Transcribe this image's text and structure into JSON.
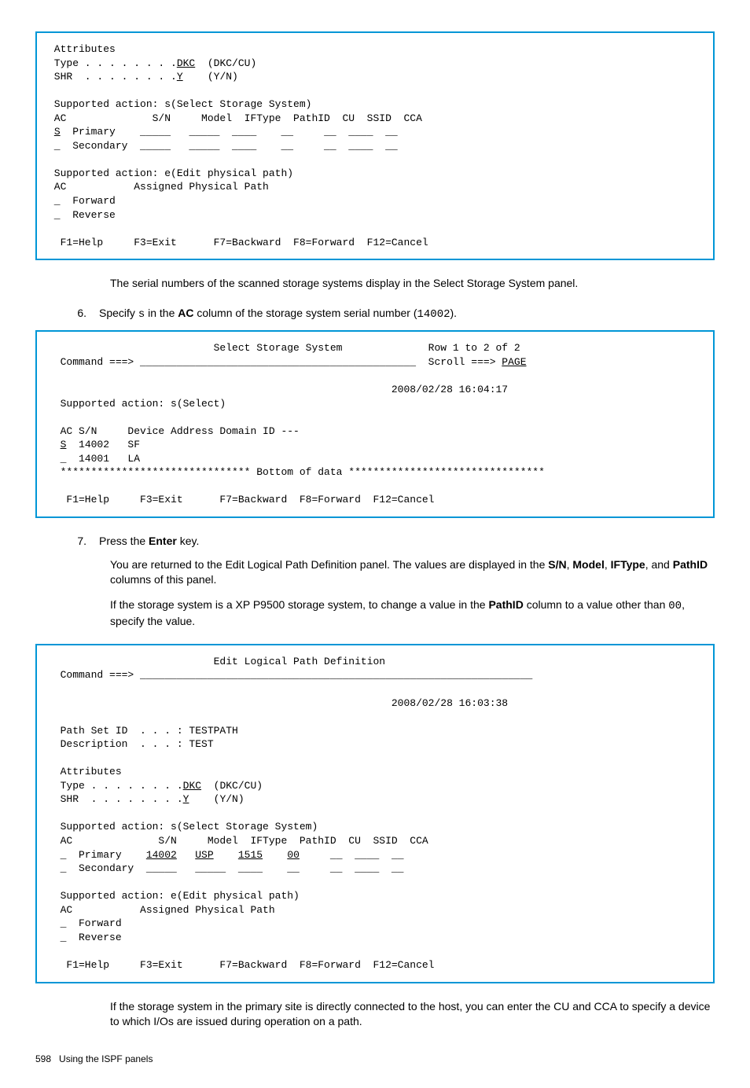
{
  "terminal1": {
    "line1": " Attributes",
    "line2a": " Type . . . . . . . .",
    "line2b": "DKC",
    "line2c": "  (DKC/CU)",
    "line3a": " SHR  . . . . . . . .",
    "line3b": "Y",
    "line3c": "    (Y/N)",
    "line4": " ",
    "line5": " Supported action: s(Select Storage System)",
    "line6": " AC              S/N     Model  IFType  PathID  CU  SSID  CCA",
    "line7a": " ",
    "line7b": "S",
    "line7c": "  Primary    _____   _____  ____    __     __  ____  __",
    "line8": " _  Secondary  _____   _____  ____    __     __  ____  __",
    "line9": " ",
    "line10": " Supported action: e(Edit physical path)",
    "line11": " AC           Assigned Physical Path",
    "line12": " _  Forward",
    "line13": " _  Reverse",
    "line14": " ",
    "line15": "  F1=Help     F3=Exit      F7=Backward  F8=Forward  F12=Cancel"
  },
  "para1": "The serial numbers of the scanned storage systems display in the Select Storage System panel.",
  "step6_num": "6.",
  "step6_a": "Specify ",
  "step6_code": "s",
  "step6_b": " in the ",
  "step6_bold": "AC",
  "step6_c": " column of the storage system serial number (",
  "step6_code2": "14002",
  "step6_d": ").",
  "terminal2": {
    "line1": "                           Select Storage System              Row 1 to 2 of 2",
    "line2a": "  Command ===> _____________________________________________  Scroll ===> ",
    "line2b": "PAGE",
    "line3": " ",
    "line4": "                                                        2008/02/28 16:04:17",
    "line5": "  Supported action: s(Select)",
    "line6": " ",
    "line7": "  AC S/N     Device Address Domain ID ---",
    "line8a": "  ",
    "line8b": "S",
    "line8c": "  14002   SF",
    "line9": "  _  14001   LA",
    "line10": "  ******************************* Bottom of data ********************************",
    "line11": " ",
    "line12": "   F1=Help     F3=Exit      F7=Backward  F8=Forward  F12=Cancel"
  },
  "step7_num": "7.",
  "step7_a": "Press the ",
  "step7_bold": "Enter",
  "step7_b": " key.",
  "para7a_a": "You are returned to the Edit Logical Path Definition panel. The values are displayed in the ",
  "para7a_b1": "S/N",
  "para7a_c1": ", ",
  "para7a_b2": "Model",
  "para7a_c2": ", ",
  "para7a_b3": "IFType",
  "para7a_c3": ", and ",
  "para7a_b4": "PathID",
  "para7a_d": " columns of this panel.",
  "para7b_a": "If the storage system is a XP P9500 storage system, to change a value in the ",
  "para7b_bold": "PathID",
  "para7b_b": " column to a value other than ",
  "para7b_code": "00",
  "para7b_c": ", specify the value.",
  "terminal3": {
    "line1": "                           Edit Logical Path Definition",
    "line2": "  Command ===> ________________________________________________________________",
    "line3": " ",
    "line4": "                                                        2008/02/28 16:03:38",
    "line5": " ",
    "line6": "  Path Set ID  . . . : TESTPATH",
    "line7": "  Description  . . . : TEST",
    "line8": " ",
    "line9": "  Attributes",
    "line10a": "  Type . . . . . . . .",
    "line10b": "DKC",
    "line10c": "  (DKC/CU)",
    "line11a": "  SHR  . . . . . . . .",
    "line11b": "Y",
    "line11c": "    (Y/N)",
    "line12": " ",
    "line13": "  Supported action: s(Select Storage System)",
    "line14": "  AC              S/N     Model  IFType  PathID  CU  SSID  CCA",
    "line15a": "  _  Primary    ",
    "line15b": "14002",
    "line15c": "   ",
    "line15d": "USP",
    "line15e": "    ",
    "line15f": "1515",
    "line15g": "    ",
    "line15h": "00",
    "line15i": "     __  ____  __",
    "line16": "  _  Secondary  _____   _____  ____    __     __  ____  __",
    "line17": " ",
    "line18": "  Supported action: e(Edit physical path)",
    "line19": "  AC           Assigned Physical Path",
    "line20": "  _  Forward",
    "line21": "  _  Reverse",
    "line22": " ",
    "line23": "   F1=Help     F3=Exit      F7=Backward  F8=Forward  F12=Cancel"
  },
  "para_last": "If the storage system in the primary site is directly connected to the host, you can enter the CU and CCA to specify a device to which I/Os are issued during operation on a path.",
  "footer_page": "598",
  "footer_text": "Using the ISPF panels"
}
